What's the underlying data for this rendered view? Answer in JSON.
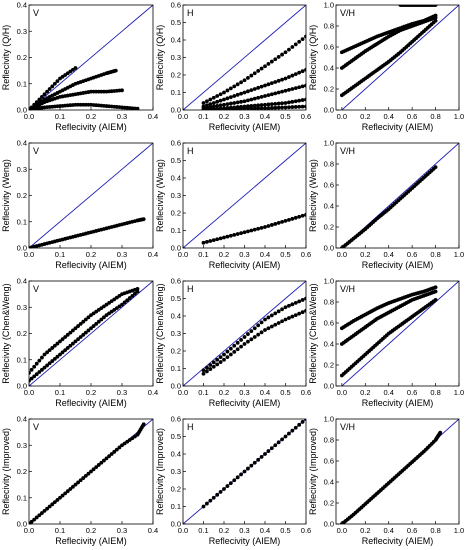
{
  "figure": {
    "xlabel_common": "Reflecivity (AIEM)",
    "line_color": "#1f1fb4",
    "point_color": "#000000"
  },
  "chart_data": [
    {
      "id": "p00",
      "type": "scatter",
      "tag": "V",
      "ylabel": "Reflecivity (Q/H)",
      "xlabel": "Reflecivity (AIEM)",
      "xlim": [
        0,
        0.4
      ],
      "ylim": [
        0,
        0.4
      ],
      "xticks": [
        0.0,
        0.1,
        0.2,
        0.3,
        0.4
      ],
      "yticks": [
        0.0,
        0.1,
        0.2,
        0.3,
        0.4
      ],
      "reference_line": "1:1",
      "series": [
        {
          "x": [
            0.0,
            0.05,
            0.1,
            0.15
          ],
          "y": [
            0.0,
            0.06,
            0.12,
            0.16
          ]
        },
        {
          "x": [
            0.0,
            0.05,
            0.1,
            0.15,
            0.2,
            0.25,
            0.28
          ],
          "y": [
            0.0,
            0.04,
            0.07,
            0.1,
            0.12,
            0.14,
            0.15
          ]
        },
        {
          "x": [
            0.0,
            0.05,
            0.1,
            0.15,
            0.2,
            0.25,
            0.3
          ],
          "y": [
            0.0,
            0.03,
            0.05,
            0.06,
            0.07,
            0.07,
            0.075
          ]
        },
        {
          "x": [
            0.0,
            0.05,
            0.1,
            0.15,
            0.2,
            0.25,
            0.3,
            0.35
          ],
          "y": [
            0.0,
            0.01,
            0.015,
            0.02,
            0.02,
            0.015,
            0.01,
            0.005
          ]
        }
      ]
    },
    {
      "id": "p01",
      "type": "scatter",
      "tag": "H",
      "ylabel": "Reflecivity (Q/H)",
      "xlabel": "Reflecivity (AIEM)",
      "xlim": [
        0,
        0.6
      ],
      "ylim": [
        0,
        0.6
      ],
      "xticks": [
        0.0,
        0.1,
        0.2,
        0.3,
        0.4,
        0.5,
        0.6
      ],
      "yticks": [
        0.0,
        0.1,
        0.2,
        0.3,
        0.4,
        0.5,
        0.6
      ],
      "reference_line": "1:1",
      "series": [
        {
          "x": [
            0.1,
            0.2,
            0.3,
            0.4,
            0.5,
            0.6
          ],
          "y": [
            0.04,
            0.1,
            0.17,
            0.25,
            0.33,
            0.42
          ]
        },
        {
          "x": [
            0.1,
            0.2,
            0.3,
            0.4,
            0.5,
            0.6
          ],
          "y": [
            0.02,
            0.06,
            0.1,
            0.14,
            0.18,
            0.23
          ]
        },
        {
          "x": [
            0.1,
            0.2,
            0.3,
            0.4,
            0.5,
            0.6
          ],
          "y": [
            0.01,
            0.03,
            0.05,
            0.08,
            0.11,
            0.14
          ]
        },
        {
          "x": [
            0.1,
            0.2,
            0.3,
            0.4,
            0.5,
            0.6
          ],
          "y": [
            0.0,
            0.01,
            0.02,
            0.03,
            0.04,
            0.06
          ]
        },
        {
          "x": [
            0.1,
            0.2,
            0.3,
            0.4,
            0.5,
            0.6
          ],
          "y": [
            0.0,
            0.005,
            0.01,
            0.01,
            0.015,
            0.02
          ]
        }
      ]
    },
    {
      "id": "p02",
      "type": "scatter",
      "tag": "V/H",
      "ylabel": "Reflecivity (Q/H)",
      "xlabel": "Reflecivity (AIEM)",
      "xlim": [
        -0.05,
        1.0
      ],
      "ylim": [
        0,
        1.0
      ],
      "xticks": [
        0.0,
        0.2,
        0.4,
        0.6,
        0.8,
        1.0
      ],
      "yticks": [
        0.0,
        0.2,
        0.4,
        0.6,
        0.8,
        1.0
      ],
      "reference_line": "1:1",
      "series": [
        {
          "x": [
            0.0,
            0.1,
            0.2,
            0.3,
            0.4,
            0.5,
            0.6,
            0.7,
            0.8
          ],
          "y": [
            0.14,
            0.22,
            0.3,
            0.38,
            0.46,
            0.55,
            0.65,
            0.75,
            0.85
          ]
        },
        {
          "x": [
            0.0,
            0.1,
            0.2,
            0.3,
            0.4,
            0.5,
            0.6,
            0.7,
            0.8
          ],
          "y": [
            0.4,
            0.48,
            0.56,
            0.63,
            0.7,
            0.76,
            0.8,
            0.84,
            0.88
          ]
        },
        {
          "x": [
            0.0,
            0.1,
            0.2,
            0.3,
            0.4,
            0.5,
            0.6,
            0.7,
            0.8
          ],
          "y": [
            0.55,
            0.6,
            0.65,
            0.7,
            0.74,
            0.78,
            0.82,
            0.85,
            0.9
          ]
        },
        {
          "x": [
            0.5,
            0.55,
            0.6,
            0.65,
            0.7,
            0.75,
            0.8
          ],
          "y": [
            1.0,
            1.0,
            1.0,
            1.0,
            1.0,
            1.0,
            1.0
          ]
        }
      ]
    },
    {
      "id": "p10",
      "type": "scatter",
      "tag": "V",
      "ylabel": "Reflecivity (Weng)",
      "xlabel": "Reflecivity (AIEM)",
      "xlim": [
        0,
        0.4
      ],
      "ylim": [
        0,
        0.4
      ],
      "xticks": [
        0.0,
        0.1,
        0.2,
        0.3,
        0.4
      ],
      "yticks": [
        0.0,
        0.1,
        0.2,
        0.3,
        0.4
      ],
      "reference_line": "1:1",
      "series": [
        {
          "x": [
            0.0,
            0.05,
            0.1,
            0.15,
            0.2,
            0.25,
            0.3,
            0.35,
            0.37
          ],
          "y": [
            0.0,
            0.015,
            0.03,
            0.045,
            0.06,
            0.075,
            0.09,
            0.105,
            0.11
          ]
        }
      ]
    },
    {
      "id": "p11",
      "type": "scatter",
      "tag": "H",
      "ylabel": "Reflecivity (Weng)",
      "xlabel": "Reflecivity (AIEM)",
      "xlim": [
        0,
        0.6
      ],
      "ylim": [
        0,
        0.6
      ],
      "xticks": [
        0.0,
        0.1,
        0.2,
        0.3,
        0.4,
        0.5,
        0.6
      ],
      "yticks": [
        0.0,
        0.1,
        0.2,
        0.3,
        0.4,
        0.5,
        0.6
      ],
      "reference_line": "1:1",
      "series": [
        {
          "x": [
            0.1,
            0.2,
            0.3,
            0.4,
            0.5,
            0.6
          ],
          "y": [
            0.03,
            0.06,
            0.09,
            0.12,
            0.155,
            0.19
          ]
        }
      ]
    },
    {
      "id": "p12",
      "type": "scatter",
      "tag": "V/H",
      "ylabel": "Reflecivity (Weng)",
      "xlabel": "Reflecivity (AIEM)",
      "xlim": [
        -0.05,
        1.0
      ],
      "ylim": [
        0,
        1.0
      ],
      "xticks": [
        0.0,
        0.2,
        0.4,
        0.6,
        0.8,
        1.0
      ],
      "yticks": [
        0.0,
        0.2,
        0.4,
        0.6,
        0.8,
        1.0
      ],
      "reference_line": "1:1",
      "series": [
        {
          "x": [
            0.0,
            0.1,
            0.2,
            0.3,
            0.4,
            0.5,
            0.6,
            0.7,
            0.8
          ],
          "y": [
            0.0,
            0.09,
            0.18,
            0.28,
            0.37,
            0.47,
            0.57,
            0.67,
            0.77
          ]
        }
      ]
    },
    {
      "id": "p20",
      "type": "scatter",
      "tag": "V",
      "ylabel": "Reflecivity (Chen&Weng)",
      "xlabel": "Reflecivity (AIEM)",
      "xlim": [
        0,
        0.4
      ],
      "ylim": [
        0,
        0.4
      ],
      "xticks": [
        0.0,
        0.1,
        0.2,
        0.3,
        0.4
      ],
      "yticks": [
        0.0,
        0.1,
        0.2,
        0.3,
        0.4
      ],
      "reference_line": "1:1",
      "series": [
        {
          "x": [
            0.0,
            0.05,
            0.1,
            0.15,
            0.2,
            0.25,
            0.3,
            0.35
          ],
          "y": [
            0.05,
            0.12,
            0.17,
            0.22,
            0.27,
            0.31,
            0.35,
            0.37
          ]
        },
        {
          "x": [
            0.0,
            0.05,
            0.1,
            0.15,
            0.2,
            0.25,
            0.3,
            0.35
          ],
          "y": [
            0.02,
            0.07,
            0.12,
            0.17,
            0.22,
            0.27,
            0.31,
            0.36
          ]
        }
      ]
    },
    {
      "id": "p21",
      "type": "scatter",
      "tag": "H",
      "ylabel": "Reflecivity (Chen&Weng)",
      "xlabel": "Reflecivity (AIEM)",
      "xlim": [
        0,
        0.6
      ],
      "ylim": [
        0,
        0.6
      ],
      "xticks": [
        0.0,
        0.1,
        0.2,
        0.3,
        0.4,
        0.5,
        0.6
      ],
      "yticks": [
        0.0,
        0.1,
        0.2,
        0.3,
        0.4,
        0.5,
        0.6
      ],
      "reference_line": "1:1",
      "series": [
        {
          "x": [
            0.1,
            0.2,
            0.3,
            0.4,
            0.5,
            0.6
          ],
          "y": [
            0.09,
            0.18,
            0.28,
            0.38,
            0.45,
            0.5
          ]
        },
        {
          "x": [
            0.1,
            0.2,
            0.3,
            0.4,
            0.5,
            0.6
          ],
          "y": [
            0.07,
            0.15,
            0.24,
            0.32,
            0.38,
            0.43
          ]
        }
      ]
    },
    {
      "id": "p22",
      "type": "scatter",
      "tag": "V/H",
      "ylabel": "Reflecivity (Chen&Weng)",
      "xlabel": "Reflecivity (AIEM)",
      "xlim": [
        -0.05,
        1.0
      ],
      "ylim": [
        0,
        1.0
      ],
      "xticks": [
        0.0,
        0.2,
        0.4,
        0.6,
        0.8,
        1.0
      ],
      "yticks": [
        0.0,
        0.2,
        0.4,
        0.6,
        0.8,
        1.0
      ],
      "reference_line": "1:1",
      "series": [
        {
          "x": [
            0.0,
            0.1,
            0.2,
            0.3,
            0.4,
            0.5,
            0.6,
            0.7,
            0.8
          ],
          "y": [
            0.1,
            0.2,
            0.3,
            0.4,
            0.5,
            0.58,
            0.66,
            0.74,
            0.82
          ]
        },
        {
          "x": [
            0.0,
            0.1,
            0.2,
            0.3,
            0.4,
            0.5,
            0.6,
            0.7,
            0.8
          ],
          "y": [
            0.4,
            0.48,
            0.56,
            0.64,
            0.7,
            0.76,
            0.82,
            0.86,
            0.9
          ]
        },
        {
          "x": [
            0.0,
            0.1,
            0.2,
            0.3,
            0.4,
            0.5,
            0.6,
            0.7,
            0.8
          ],
          "y": [
            0.55,
            0.62,
            0.68,
            0.74,
            0.79,
            0.83,
            0.87,
            0.9,
            0.94
          ]
        }
      ]
    },
    {
      "id": "p30",
      "type": "scatter",
      "tag": "V",
      "ylabel": "Reflecivity (Improved)",
      "xlabel": "Reflecivity (AIEM)",
      "xlim": [
        0,
        0.4
      ],
      "ylim": [
        0,
        0.4
      ],
      "xticks": [
        0.0,
        0.1,
        0.2,
        0.3,
        0.4
      ],
      "yticks": [
        0.0,
        0.1,
        0.2,
        0.3,
        0.4
      ],
      "reference_line": "1:1",
      "series": [
        {
          "x": [
            0.0,
            0.05,
            0.1,
            0.15,
            0.2,
            0.25,
            0.3,
            0.35,
            0.37
          ],
          "y": [
            0.0,
            0.05,
            0.1,
            0.15,
            0.2,
            0.25,
            0.3,
            0.34,
            0.38
          ]
        }
      ]
    },
    {
      "id": "p31",
      "type": "scatter",
      "tag": "H",
      "ylabel": "Reflecivity (Improved)",
      "xlabel": "Reflecivity (AIEM)",
      "xlim": [
        0,
        0.6
      ],
      "ylim": [
        0,
        0.6
      ],
      "xticks": [
        0.0,
        0.1,
        0.2,
        0.3,
        0.4,
        0.5,
        0.6
      ],
      "yticks": [
        0.0,
        0.1,
        0.2,
        0.3,
        0.4,
        0.5,
        0.6
      ],
      "reference_line": "1:1",
      "series": [
        {
          "x": [
            0.1,
            0.2,
            0.3,
            0.4,
            0.5,
            0.6
          ],
          "y": [
            0.1,
            0.2,
            0.3,
            0.4,
            0.5,
            0.6
          ]
        }
      ]
    },
    {
      "id": "p32",
      "type": "scatter",
      "tag": "V/H",
      "ylabel": "Reflecivity (Improved)",
      "xlabel": "Reflecivity (AIEM)",
      "xlim": [
        -0.05,
        1.0
      ],
      "ylim": [
        0,
        1.0
      ],
      "xticks": [
        0.0,
        0.2,
        0.4,
        0.6,
        0.8,
        1.0
      ],
      "yticks": [
        0.0,
        0.2,
        0.4,
        0.6,
        0.8,
        1.0
      ],
      "reference_line": "1:1",
      "series": [
        {
          "x": [
            0.0,
            0.1,
            0.2,
            0.3,
            0.4,
            0.5,
            0.6,
            0.7,
            0.8,
            0.84
          ],
          "y": [
            0.0,
            0.09,
            0.19,
            0.29,
            0.39,
            0.49,
            0.59,
            0.69,
            0.8,
            0.87
          ]
        }
      ]
    }
  ]
}
